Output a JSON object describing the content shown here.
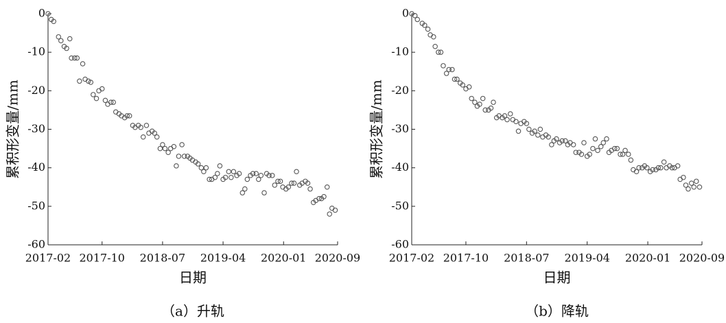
{
  "chart_data": [
    {
      "type": "scatter",
      "caption": "（a）升轨",
      "xlabel": "日期",
      "ylabel": "累积形变量/mm",
      "marker_color": "#555555",
      "xlim": [
        2017.08,
        2020.67
      ],
      "ylim": [
        -60,
        0
      ],
      "xticks": [
        {
          "value": 2017.08,
          "label": "2017-02"
        },
        {
          "value": 2017.75,
          "label": "2017-10"
        },
        {
          "value": 2018.5,
          "label": "2018-07"
        },
        {
          "value": 2019.25,
          "label": "2019-04"
        },
        {
          "value": 2020.0,
          "label": "2020-01"
        },
        {
          "value": 2020.67,
          "label": "2020-09"
        }
      ],
      "yticks": [
        0,
        -10,
        -20,
        -30,
        -40,
        -50,
        -60
      ],
      "x": [
        2017.08,
        2017.12,
        2017.15,
        2017.21,
        2017.24,
        2017.28,
        2017.31,
        2017.35,
        2017.37,
        2017.41,
        2017.44,
        2017.47,
        2017.51,
        2017.54,
        2017.58,
        2017.61,
        2017.64,
        2017.68,
        2017.71,
        2017.75,
        2017.79,
        2017.82,
        2017.86,
        2017.89,
        2017.92,
        2017.96,
        2017.99,
        2018.03,
        2018.06,
        2018.09,
        2018.13,
        2018.16,
        2018.2,
        2018.23,
        2018.26,
        2018.3,
        2018.33,
        2018.37,
        2018.4,
        2018.43,
        2018.47,
        2018.5,
        2018.53,
        2018.57,
        2018.6,
        2018.64,
        2018.67,
        2018.7,
        2018.74,
        2018.77,
        2018.81,
        2018.84,
        2018.87,
        2018.91,
        2018.94,
        2018.98,
        2019.01,
        2019.04,
        2019.08,
        2019.11,
        2019.15,
        2019.18,
        2019.21,
        2019.25,
        2019.28,
        2019.32,
        2019.35,
        2019.38,
        2019.42,
        2019.45,
        2019.49,
        2019.52,
        2019.55,
        2019.59,
        2019.62,
        2019.66,
        2019.69,
        2019.72,
        2019.76,
        2019.79,
        2019.82,
        2019.86,
        2019.89,
        2019.93,
        2019.96,
        2019.99,
        2020.03,
        2020.06,
        2020.1,
        2020.13,
        2020.16,
        2020.2,
        2020.23,
        2020.27,
        2020.3,
        2020.33,
        2020.37,
        2020.4,
        2020.44,
        2020.47,
        2020.5,
        2020.54,
        2020.57,
        2020.6,
        2020.64
      ],
      "values": [
        0,
        -1.5,
        -2,
        -6,
        -7,
        -8.5,
        -9,
        -6.5,
        -11.5,
        -11.5,
        -11.5,
        -17.5,
        -13,
        -17,
        -17.5,
        -17.8,
        -21,
        -22,
        -20,
        -19.5,
        -22.5,
        -23.5,
        -23,
        -23,
        -25.5,
        -26,
        -26.5,
        -27,
        -26.5,
        -26.5,
        -29,
        -29.5,
        -29,
        -29.5,
        -32,
        -29,
        -31,
        -30.5,
        -31,
        -32,
        -35,
        -34,
        -35,
        -36,
        -35,
        -34.5,
        -39.5,
        -37,
        -34,
        -37,
        -37,
        -37.5,
        -38,
        -38.5,
        -39,
        -40,
        -41,
        -40,
        -43,
        -43,
        -42.5,
        -41.5,
        -39.5,
        -43,
        -42.5,
        -41,
        -42.5,
        -41,
        -42,
        -41.5,
        -46.5,
        -45.5,
        -43,
        -42,
        -41.5,
        -41.5,
        -43,
        -42,
        -46.5,
        -41.5,
        -42,
        -42,
        -44.5,
        -43.5,
        -43.5,
        -45,
        -45.5,
        -45,
        -44,
        -44,
        -41,
        -44.5,
        -44,
        -43.5,
        -44,
        -45.5,
        -49,
        -48.5,
        -48,
        -48,
        -47.5,
        -45,
        -52,
        -50.5,
        -51
      ]
    },
    {
      "type": "scatter",
      "caption": "（b）降轨",
      "xlabel": "日期",
      "ylabel": "累积形变量/mm",
      "marker_color": "#555555",
      "xlim": [
        2017.08,
        2020.67
      ],
      "ylim": [
        -60,
        0
      ],
      "xticks": [
        {
          "value": 2017.08,
          "label": "2017-02"
        },
        {
          "value": 2017.75,
          "label": "2017-10"
        },
        {
          "value": 2018.5,
          "label": "2018-07"
        },
        {
          "value": 2019.25,
          "label": "2019-04"
        },
        {
          "value": 2020.0,
          "label": "2020-01"
        },
        {
          "value": 2020.67,
          "label": "2020-09"
        }
      ],
      "yticks": [
        0,
        -10,
        -20,
        -30,
        -40,
        -50,
        -60
      ],
      "x": [
        2017.08,
        2017.12,
        2017.15,
        2017.21,
        2017.24,
        2017.28,
        2017.31,
        2017.35,
        2017.37,
        2017.41,
        2017.44,
        2017.47,
        2017.51,
        2017.54,
        2017.58,
        2017.61,
        2017.64,
        2017.68,
        2017.71,
        2017.75,
        2017.79,
        2017.82,
        2017.86,
        2017.89,
        2017.92,
        2017.96,
        2017.99,
        2018.03,
        2018.06,
        2018.09,
        2018.13,
        2018.16,
        2018.2,
        2018.23,
        2018.26,
        2018.3,
        2018.33,
        2018.37,
        2018.4,
        2018.43,
        2018.47,
        2018.5,
        2018.53,
        2018.57,
        2018.6,
        2018.64,
        2018.67,
        2018.7,
        2018.74,
        2018.77,
        2018.81,
        2018.84,
        2018.87,
        2018.91,
        2018.94,
        2018.98,
        2019.01,
        2019.04,
        2019.08,
        2019.11,
        2019.15,
        2019.18,
        2019.21,
        2019.25,
        2019.28,
        2019.32,
        2019.35,
        2019.38,
        2019.42,
        2019.45,
        2019.49,
        2019.52,
        2019.55,
        2019.59,
        2019.62,
        2019.66,
        2019.69,
        2019.72,
        2019.76,
        2019.79,
        2019.82,
        2019.86,
        2019.89,
        2019.93,
        2019.96,
        2019.99,
        2020.03,
        2020.06,
        2020.1,
        2020.13,
        2020.16,
        2020.2,
        2020.23,
        2020.27,
        2020.3,
        2020.33,
        2020.37,
        2020.4,
        2020.44,
        2020.47,
        2020.5,
        2020.54,
        2020.57,
        2020.6,
        2020.64
      ],
      "values": [
        0,
        -0.5,
        -1.5,
        -2.5,
        -3,
        -4,
        -5.5,
        -6,
        -8.5,
        -10,
        -10,
        -13.5,
        -15.5,
        -14.5,
        -14.5,
        -17,
        -17,
        -18,
        -18.5,
        -19.5,
        -19,
        -22,
        -23,
        -24,
        -23.5,
        -22,
        -25,
        -25,
        -24.5,
        -23,
        -27,
        -26.5,
        -27,
        -26.5,
        -27.5,
        -26,
        -27.5,
        -28,
        -30.5,
        -28.5,
        -28,
        -28.5,
        -30,
        -31,
        -30.5,
        -31.5,
        -30,
        -32,
        -31.5,
        -32,
        -34,
        -33,
        -32.5,
        -33.5,
        -33,
        -33,
        -34,
        -33.5,
        -34,
        -36,
        -36,
        -36.5,
        -33.5,
        -37,
        -36.5,
        -35,
        -32.5,
        -35.5,
        -34.5,
        -33.5,
        -32.5,
        -36,
        -35.5,
        -35,
        -35,
        -36.5,
        -36.5,
        -35.5,
        -36.5,
        -38,
        -40.5,
        -41,
        -40,
        -40,
        -39.5,
        -40,
        -41,
        -40.5,
        -40.5,
        -40,
        -40,
        -38.5,
        -40,
        -39.5,
        -40,
        -40,
        -39.5,
        -43,
        -42.5,
        -44.5,
        -45.5,
        -44,
        -45,
        -43.5,
        -45
      ]
    }
  ]
}
